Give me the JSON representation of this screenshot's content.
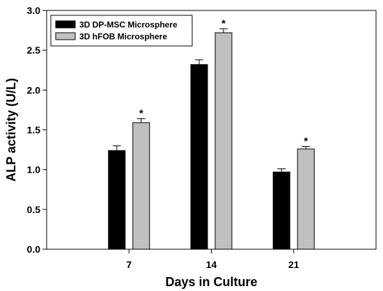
{
  "chart_data": {
    "type": "bar",
    "title": "",
    "xlabel": "Days in Culture",
    "ylabel": "ALP activity (U/L)",
    "categories": [
      "7",
      "14",
      "21"
    ],
    "ylim": [
      0,
      3.0
    ],
    "yticks": [
      "0.0",
      "0.5",
      "1.0",
      "1.5",
      "2.0",
      "2.5",
      "3.0"
    ],
    "grid": false,
    "legend_position": "top-left",
    "series": [
      {
        "name": "3D DP-MSC Microsphere",
        "color": "#000000",
        "values": [
          1.24,
          2.32,
          0.97
        ],
        "errors": [
          0.06,
          0.06,
          0.04
        ],
        "significance": [
          "",
          "",
          ""
        ]
      },
      {
        "name": "3D hFOB Microsphere",
        "color": "#c0c0c0",
        "values": [
          1.59,
          2.72,
          1.26
        ],
        "errors": [
          0.05,
          0.05,
          0.03
        ],
        "significance": [
          "*",
          "*",
          "*"
        ]
      }
    ]
  }
}
